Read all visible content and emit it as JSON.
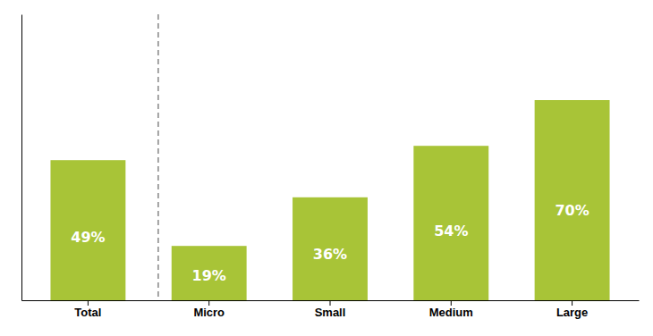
{
  "chart_data": {
    "type": "bar",
    "categories": [
      "Total",
      "Micro",
      "Small",
      "Medium",
      "Large"
    ],
    "values": [
      49,
      19,
      36,
      54,
      70
    ],
    "value_labels": [
      "49%",
      "19%",
      "36%",
      "54%",
      "70%"
    ],
    "color": "#a8c437",
    "ylim": [
      0,
      100
    ],
    "data_labels": true,
    "tick_labels": "x"
  }
}
